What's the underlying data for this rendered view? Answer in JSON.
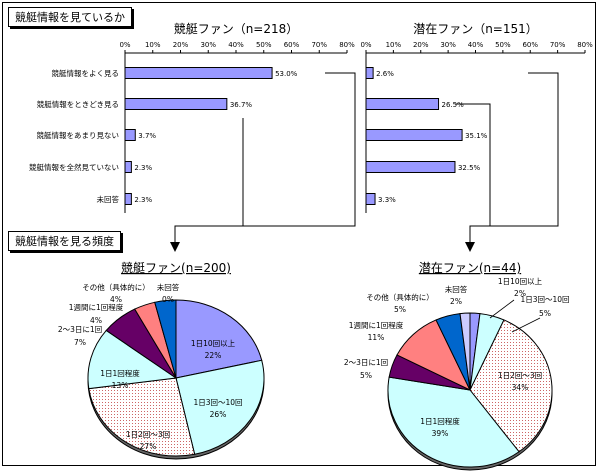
{
  "section1_title": "競艇情報を見ているか",
  "section2_title": "競艇情報を見る頻度",
  "colors": {
    "bar_fill": "#9999ff",
    "pie_1": "#9999ff",
    "pie_2": "#ccffff",
    "pie_3": "#ffcccc",
    "pie_4": "#ccffff",
    "pie_5": "#660066",
    "pie_6": "#ff8080",
    "pie_7": "#0066cc",
    "pie_8": "#ccccff"
  },
  "chart_data": [
    {
      "type": "bar",
      "orientation": "horizontal",
      "title": "競艇ファン（n=218）",
      "categories": [
        "競艇情報をよく見る",
        "競艇情報をときどき見る",
        "競艇情報をあまり見ない",
        "競艇情報を全然見ていない",
        "未回答"
      ],
      "values": [
        53.0,
        36.7,
        3.7,
        2.3,
        2.3
      ],
      "value_labels": [
        "53.0%",
        "36.7%",
        "3.7%",
        "2.3%",
        "2.3%"
      ],
      "xlim": [
        0,
        80
      ],
      "ticks": [
        "0%",
        "10%",
        "20%",
        "30%",
        "40%",
        "50%",
        "60%",
        "70%",
        "80%"
      ],
      "grid": false
    },
    {
      "type": "bar",
      "orientation": "horizontal",
      "title": "潜在ファン（n=151）",
      "categories": [
        "競艇情報をよく見る",
        "競艇情報をときどき見る",
        "競艇情報をあまり見ない",
        "競艇情報を全然見ていない",
        "未回答"
      ],
      "values": [
        2.6,
        26.5,
        35.1,
        32.5,
        3.3
      ],
      "value_labels": [
        "2.6%",
        "26.5%",
        "35.1%",
        "32.5%",
        "3.3%"
      ],
      "xlim": [
        0,
        80
      ],
      "ticks": [
        "0%",
        "10%",
        "20%",
        "30%",
        "40%",
        "50%",
        "60%",
        "70%",
        "80%"
      ],
      "grid": false
    },
    {
      "type": "pie",
      "title": "競艇ファン(n=200)",
      "slices": [
        {
          "label": "1日10回以上",
          "value": 22,
          "value_label": "22%"
        },
        {
          "label": "1日3回～10回",
          "value": 26,
          "value_label": "26%"
        },
        {
          "label": "1日2回～3回",
          "value": 27,
          "value_label": "27%"
        },
        {
          "label": "1日1回程度",
          "value": 13,
          "value_label": "13%"
        },
        {
          "label": "2～3日に1回",
          "value": 7,
          "value_label": "7%"
        },
        {
          "label": "1週間に1回程度",
          "value": 4,
          "value_label": "4%"
        },
        {
          "label": "その他（具体的に）",
          "value": 4,
          "value_label": "4%"
        },
        {
          "label": "未回答",
          "value": 0,
          "value_label": "0%"
        }
      ]
    },
    {
      "type": "pie",
      "title": "潜在ファン(n=44)",
      "slices": [
        {
          "label": "1日10回以上",
          "value": 2,
          "value_label": "2%"
        },
        {
          "label": "1日3回～10回",
          "value": 5,
          "value_label": "5%"
        },
        {
          "label": "1日2回～3回",
          "value": 34,
          "value_label": "34%"
        },
        {
          "label": "1日1回程度",
          "value": 39,
          "value_label": "39%"
        },
        {
          "label": "2～3日に1回",
          "value": 5,
          "value_label": "5%"
        },
        {
          "label": "1週間に1回程度",
          "value": 11,
          "value_label": "11%"
        },
        {
          "label": "その他（具体的に）",
          "value": 5,
          "value_label": "5%"
        },
        {
          "label": "未回答",
          "value": 2,
          "value_label": "2%"
        }
      ]
    }
  ]
}
